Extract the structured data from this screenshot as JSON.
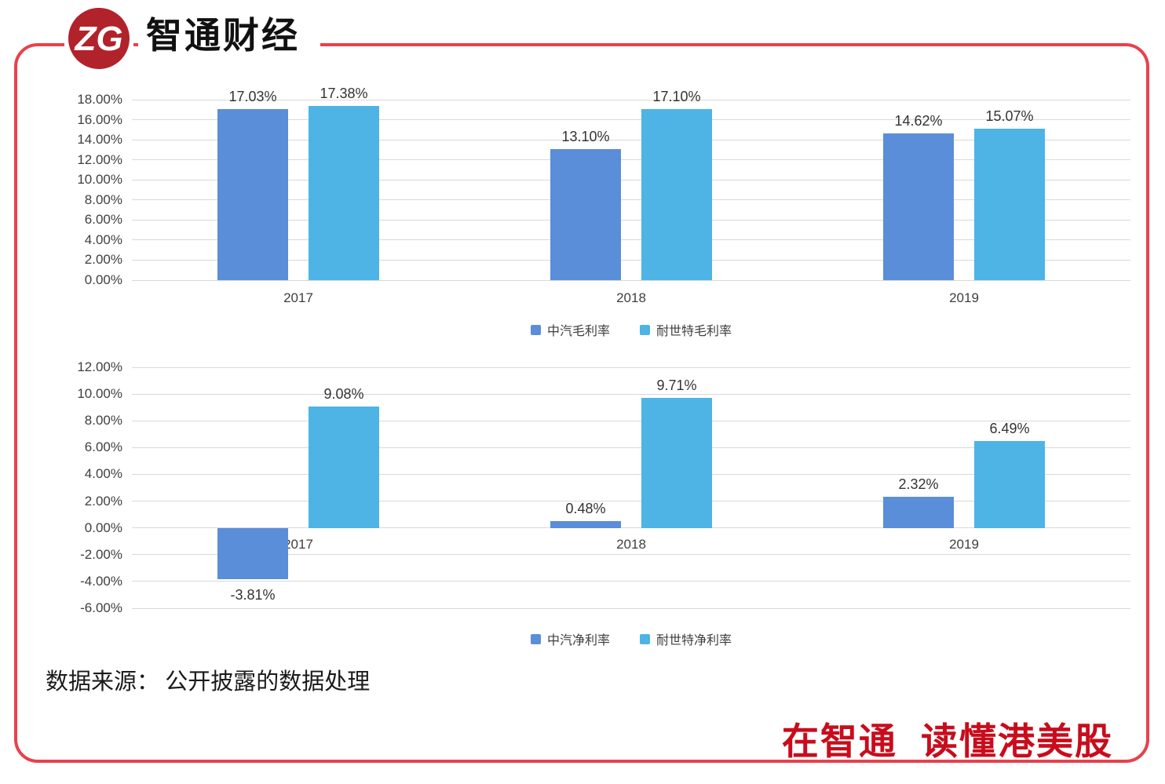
{
  "header": {
    "brand": "智通财经",
    "logo_monogram": "ZG"
  },
  "colors": {
    "accent_red": "#e8414c",
    "logo_red": "#b2222b",
    "slogan_red": "#c90c1c",
    "series1_blue": "#5b8ed8",
    "series2_blue": "#4db4e5",
    "grid_gray": "#d9d9d9",
    "text_dark": "#3f3f3f"
  },
  "chart_data": [
    {
      "type": "bar",
      "title": "",
      "categories": [
        "2017",
        "2018",
        "2019"
      ],
      "series": [
        {
          "name": "中汽毛利率",
          "color": "#5b8ed8",
          "values": [
            17.03,
            13.1,
            14.62
          ]
        },
        {
          "name": "耐世特毛利率",
          "color": "#4db4e5",
          "values": [
            17.38,
            17.1,
            15.07
          ]
        }
      ],
      "ylim": [
        0,
        18
      ],
      "ytick_step": 2,
      "tick_suffix": "%",
      "grid": true,
      "legend_position": "bottom",
      "data_labels": true
    },
    {
      "type": "bar",
      "title": "",
      "categories": [
        "2017",
        "2018",
        "2019"
      ],
      "series": [
        {
          "name": "中汽净利率",
          "color": "#5b8ed8",
          "values": [
            -3.81,
            0.48,
            2.32
          ]
        },
        {
          "name": "耐世特净利率",
          "color": "#4db4e5",
          "values": [
            9.08,
            9.71,
            6.49
          ]
        }
      ],
      "ylim": [
        -6,
        12
      ],
      "ytick_step": 2,
      "tick_suffix": "%",
      "grid": true,
      "legend_position": "bottom",
      "data_labels": true
    }
  ],
  "footer": {
    "source": "数据来源： 公开披露的数据处理",
    "slogan": "在智通  读懂港美股"
  }
}
